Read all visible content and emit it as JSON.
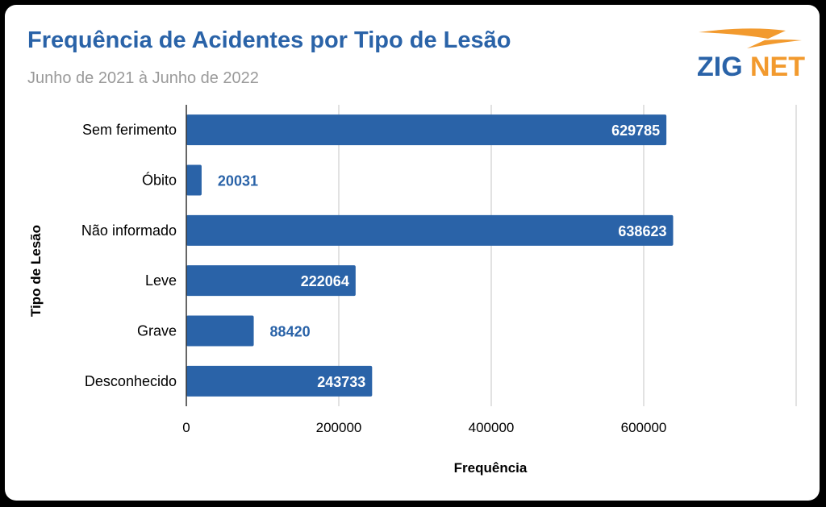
{
  "header": {
    "title": "Frequência de Acidentes por Tipo de Lesão",
    "subtitle": "Junho de 2021 à Junho de 2022"
  },
  "logo": {
    "part1": "ZIG",
    "part2": "NET",
    "colors": {
      "primary": "#2a63a8",
      "accent": "#f29a2e"
    }
  },
  "chart_data": {
    "type": "bar",
    "orientation": "horizontal",
    "categories": [
      "Sem ferimento",
      "Óbito",
      "Não informado",
      "Leve",
      "Grave",
      "Desconhecido"
    ],
    "values": [
      629785,
      20031,
      638623,
      222064,
      88420,
      243733
    ],
    "data_labels": [
      "629785",
      "20031",
      "638623",
      "222064",
      "88420",
      "243733"
    ],
    "xlabel": "Frequência",
    "ylabel": "Tipo de Lesão",
    "xlim": [
      0,
      800000
    ],
    "xticks": [
      0,
      200000,
      400000,
      600000
    ],
    "xtick_labels": [
      "0",
      "200000",
      "400000",
      "600000"
    ],
    "grid": true,
    "bar_color": "#2a63a8"
  }
}
